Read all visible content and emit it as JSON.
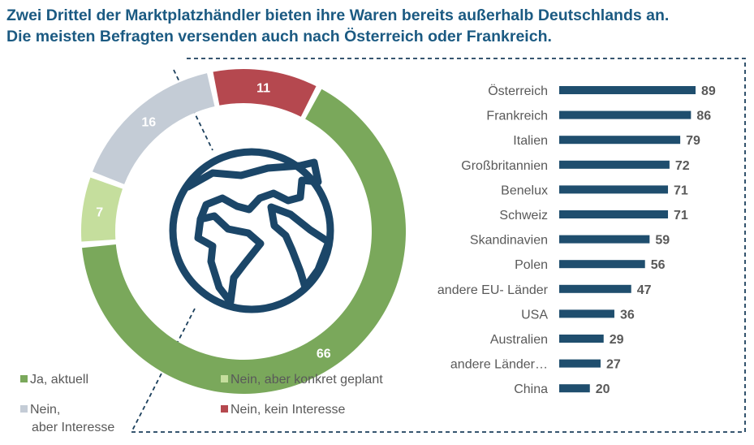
{
  "title": {
    "line1": "Zwei Drittel der Marktplatzhändler bieten ihre Waren bereits außerhalb Deutschlands an.",
    "line2": "Die meisten Befragten versenden auch nach Österreich oder Frankreich."
  },
  "chart_data": [
    {
      "type": "pie",
      "variant": "donut",
      "slices": [
        {
          "label": "Ja, aktuell",
          "value": 66,
          "color": "#7aa85b"
        },
        {
          "label": "Nein, aber konkret geplant",
          "value": 7,
          "color": "#c5de9d"
        },
        {
          "label": "Nein, aber Interesse",
          "value": 16,
          "color": "#c4ccd6"
        },
        {
          "label": "Nein, kein Interesse",
          "value": 11,
          "color": "#b5484f"
        }
      ],
      "legend": [
        {
          "text": "Ja, aktuell",
          "color": "#7aa85b"
        },
        {
          "text": "Nein, aber konkret geplant",
          "color": "#c5de9d"
        },
        {
          "text": "Nein,",
          "text2": "aber Interesse",
          "color": "#c4ccd6"
        },
        {
          "text": "Nein, kein Interesse",
          "color": "#b5484f"
        }
      ],
      "center_icon": "globe-icon"
    },
    {
      "type": "bar",
      "orientation": "horizontal",
      "categories": [
        "Österreich",
        "Frankreich",
        "Italien",
        "Großbritannien",
        "Benelux",
        "Schweiz",
        "Skandinavien",
        "Polen",
        "andere EU- Länder",
        "USA",
        "Australien",
        "andere Länder…",
        "China"
      ],
      "values": [
        89,
        86,
        79,
        72,
        71,
        71,
        59,
        56,
        47,
        36,
        29,
        27,
        20
      ],
      "color": "#1f4e6e",
      "xlim": [
        0,
        89
      ],
      "grid": false
    }
  ]
}
